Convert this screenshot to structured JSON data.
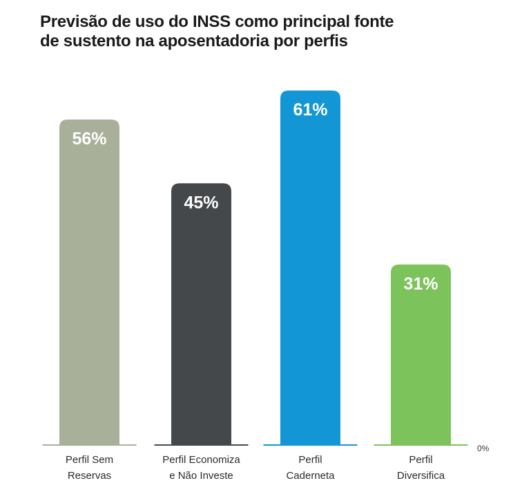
{
  "title_lines": [
    "Previsão de uso do INSS como principal fonte",
    "de sustento na aposentadoria por perfis"
  ],
  "chart_data": {
    "type": "bar",
    "categories": [
      [
        "Perfil Sem",
        "Reservas"
      ],
      [
        "Perfil Economiza",
        "e Não Investe"
      ],
      [
        "Perfil",
        "Caderneta"
      ],
      [
        "Perfil",
        "Diversifica"
      ]
    ],
    "values": [
      56,
      45,
      61,
      31
    ],
    "value_labels": [
      "56%",
      "45%",
      "61%",
      "31%"
    ],
    "colors": [
      "#a9b09a",
      "#45484b",
      "#1396d6",
      "#7cc35b"
    ],
    "baseline_label": "0%",
    "ylim": [
      0,
      61
    ]
  }
}
